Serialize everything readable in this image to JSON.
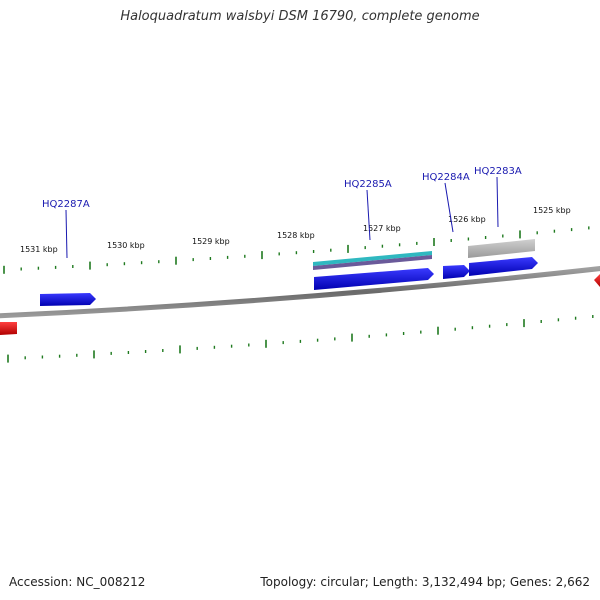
{
  "title": "Haloquadratum walsbyi DSM 16790, complete genome",
  "footer": {
    "accession": "Accession: NC_008212",
    "summary": "Topology: circular; Length: 3,132,494 bp; Genes: 2,662"
  },
  "colors": {
    "backbone": "#7a7a7a",
    "tick": "#1f7a1f",
    "forward_gene": "#1515e0",
    "reverse_gene": "#e01010",
    "label": "#1a1ab0",
    "rna_teal": "#2fb8c0",
    "rna_purple": "#6a5a9a",
    "pseudogene_gray": "#b8b8b8"
  },
  "kbp_labels": [
    "1531 kbp",
    "1530 kbp",
    "1529 kbp",
    "1528 kbp",
    "1527 kbp",
    "1526 kbp",
    "1525 kbp"
  ],
  "gene_labels": [
    "HQ2287A",
    "HQ2285A",
    "HQ2284A",
    "HQ2283A"
  ]
}
